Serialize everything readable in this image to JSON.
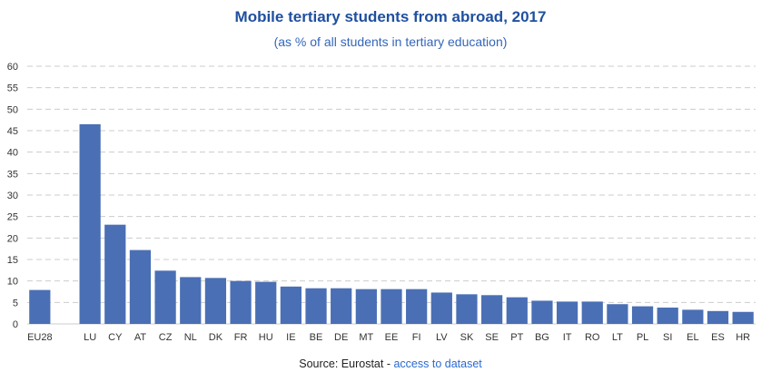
{
  "chart_data": {
    "type": "bar",
    "title": "Mobile tertiary students from abroad, 2017",
    "subtitle": "(as % of all students in tertiary education)",
    "categories": [
      "EU28",
      "",
      "LU",
      "CY",
      "AT",
      "CZ",
      "NL",
      "DK",
      "FR",
      "HU",
      "IE",
      "BE",
      "DE",
      "MT",
      "EE",
      "FI",
      "LV",
      "SK",
      "SE",
      "PT",
      "BG",
      "IT",
      "RO",
      "LT",
      "PL",
      "SI",
      "EL",
      "ES",
      "HR"
    ],
    "values": [
      7.9,
      null,
      46.5,
      23.1,
      17.2,
      12.4,
      10.9,
      10.7,
      10.0,
      9.8,
      8.7,
      8.3,
      8.3,
      8.1,
      8.1,
      8.1,
      7.3,
      6.9,
      6.7,
      6.2,
      5.4,
      5.2,
      5.2,
      4.6,
      4.1,
      3.8,
      3.3,
      3.0,
      2.8
    ],
    "ylim": [
      0,
      60
    ],
    "yticks": [
      0,
      5,
      10,
      15,
      20,
      25,
      30,
      35,
      40,
      45,
      50,
      55,
      60
    ],
    "grid": true,
    "legend": "none",
    "bar_color": "#4a6fb5",
    "grid_color": "#cccccc"
  },
  "source": {
    "prefix": "Source: Eurostat - ",
    "link_label": "access to dataset"
  }
}
